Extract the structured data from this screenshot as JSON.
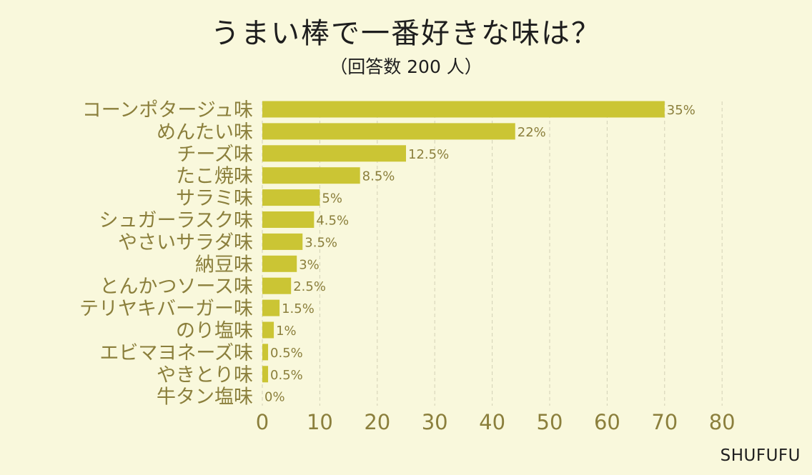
{
  "title": "うまい棒で一番好きな味は？",
  "subtitle": "（回答数 200 人）",
  "brand": "SHUFUFU",
  "colors": {
    "background": "#f9f8dc",
    "bar": "#cbc534",
    "category_text": "#8b7f3c",
    "tick_text": "#8b7f3c",
    "value_text": "#8b7f3c",
    "grid": "#d3d1b6"
  },
  "chart_data": {
    "type": "bar",
    "orientation": "horizontal",
    "categories": [
      "コーンポタージュ味",
      "めんたい味",
      "チーズ味",
      "たこ焼味",
      "サラミ味",
      "シュガーラスク味",
      "やさいサラダ味",
      "納豆味",
      "とんかつソース味",
      "テリヤキバーガー味",
      "のり塩味",
      "エビマヨネーズ味",
      "やきとり味",
      "牛タン塩味"
    ],
    "values": [
      70,
      44,
      25,
      17,
      10,
      9,
      7,
      6,
      5,
      3,
      2,
      1,
      1,
      0
    ],
    "value_labels": [
      "35%",
      "22%",
      "12.5%",
      "8.5%",
      "5%",
      "4.5%",
      "3.5%",
      "3%",
      "2.5%",
      "1.5%",
      "1%",
      "0.5%",
      "0.5%",
      "0%"
    ],
    "xlim": [
      0,
      80
    ],
    "x_ticks": [
      "0",
      "10",
      "20",
      "30",
      "40",
      "50",
      "60",
      "70",
      "80"
    ],
    "xlabel": "",
    "ylabel": "",
    "grid": true,
    "legend": false
  }
}
